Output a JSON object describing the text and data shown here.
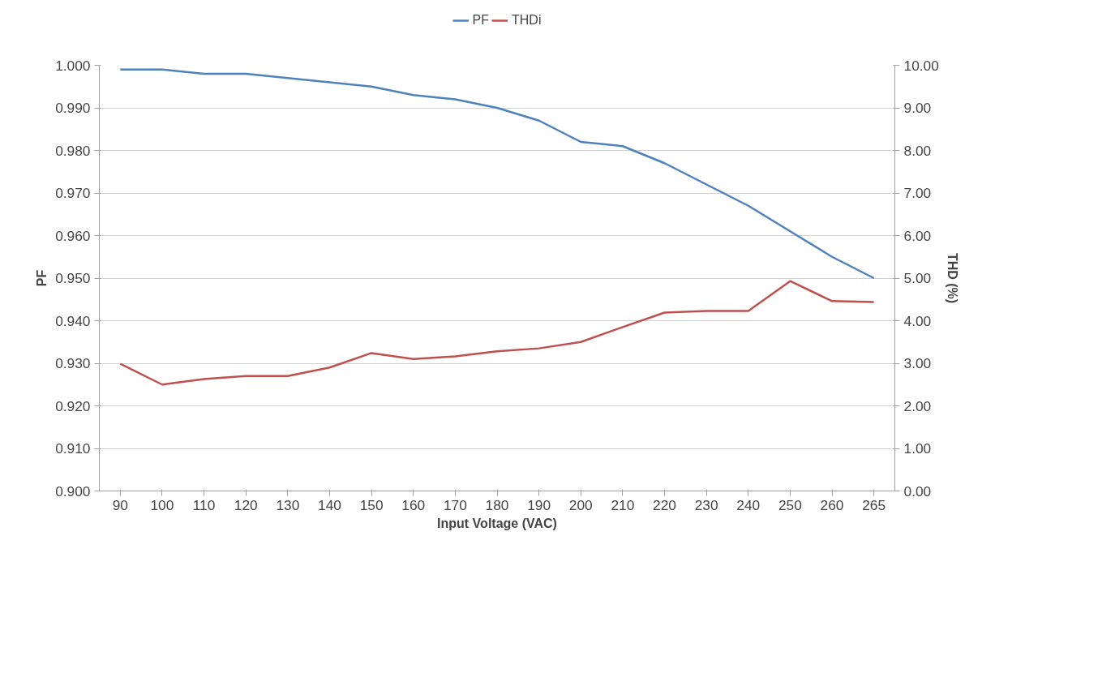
{
  "chart_data": {
    "type": "line",
    "xlabel": "Input Voltage (VAC)",
    "ylabel": "PF",
    "y2label": "THD (%)",
    "categories": [
      "90",
      "100",
      "110",
      "120",
      "130",
      "140",
      "150",
      "160",
      "170",
      "180",
      "190",
      "200",
      "210",
      "220",
      "230",
      "240",
      "250",
      "260",
      "265"
    ],
    "series": [
      {
        "name": "PF",
        "color": "#4f81bd",
        "values": [
          0.999,
          0.999,
          0.998,
          0.998,
          0.997,
          0.996,
          0.995,
          0.993,
          0.992,
          0.99,
          0.987,
          0.982,
          0.981,
          0.977,
          0.972,
          0.967,
          0.961,
          0.955,
          0.95
        ]
      },
      {
        "name": "THDi",
        "color": "#c0504d",
        "axis": "y2",
        "values": [
          2.99,
          2.5,
          2.63,
          2.7,
          2.7,
          2.9,
          3.24,
          3.1,
          3.16,
          3.28,
          3.35,
          3.5,
          3.85,
          4.19,
          4.23,
          4.23,
          4.93,
          4.46,
          4.44
        ]
      }
    ],
    "ylim": [
      0.9,
      1.0
    ],
    "yticks": [
      {
        "value": 0.9,
        "label": "0.900"
      },
      {
        "value": 0.91,
        "label": "0.910"
      },
      {
        "value": 0.92,
        "label": "0.920"
      },
      {
        "value": 0.93,
        "label": "0.930"
      },
      {
        "value": 0.94,
        "label": "0.940"
      },
      {
        "value": 0.95,
        "label": "0.950"
      },
      {
        "value": 0.96,
        "label": "0.960"
      },
      {
        "value": 0.97,
        "label": "0.970"
      },
      {
        "value": 0.98,
        "label": "0.980"
      },
      {
        "value": 0.99,
        "label": "0.990"
      },
      {
        "value": 1.0,
        "label": "1.000"
      }
    ],
    "y2lim": [
      0,
      10
    ],
    "y2ticks": [
      {
        "value": 0,
        "label": "0.00"
      },
      {
        "value": 1,
        "label": "1.00"
      },
      {
        "value": 2,
        "label": "2.00"
      },
      {
        "value": 3,
        "label": "3.00"
      },
      {
        "value": 4,
        "label": "4.00"
      },
      {
        "value": 5,
        "label": "5.00"
      },
      {
        "value": 6,
        "label": "6.00"
      },
      {
        "value": 7,
        "label": "7.00"
      },
      {
        "value": 8,
        "label": "8.00"
      },
      {
        "value": 9,
        "label": "9.00"
      },
      {
        "value": 10,
        "label": "10.00"
      }
    ],
    "grid": "y",
    "legend": "top",
    "marker": "none",
    "line_style": "solid"
  }
}
